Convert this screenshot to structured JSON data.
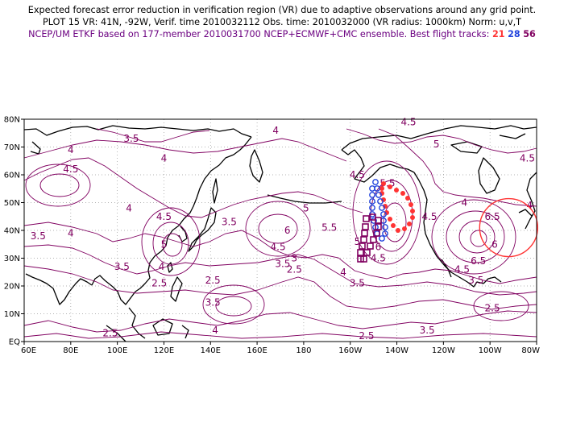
{
  "header": {
    "line1": "Expected forecast error reduction in verification region (VR) due to adaptive observations around any grid point.",
    "line2": "PLOT 15 VR: 41N, -92W, Verif. time 2010032112 Obs. time: 2010032000 (VR radius: 1000km) Norm: u,v,T",
    "line3": "NCEP/UM ETKF based on 177-member 2010031700 NCEP+ECMWF+CMC ensemble. Best flight tracks:",
    "track_a": "21",
    "track_b": "28",
    "track_c": "56"
  },
  "colors": {
    "track_a": "#ff3333",
    "track_b": "#2244dd",
    "track_c": "#800060",
    "contour": "#800060",
    "coast": "#000000"
  },
  "map": {
    "lon_range": [
      60,
      280
    ],
    "lat_range": [
      0,
      80
    ],
    "lat_ticks": [
      {
        "lat": 80,
        "label": "80N"
      },
      {
        "lat": 70,
        "label": "70N"
      },
      {
        "lat": 60,
        "label": "60N"
      },
      {
        "lat": 50,
        "label": "50N"
      },
      {
        "lat": 40,
        "label": "40N"
      },
      {
        "lat": 30,
        "label": "30N"
      },
      {
        "lat": 20,
        "label": "20N"
      },
      {
        "lat": 10,
        "label": "10N"
      },
      {
        "lat": 0,
        "label": "EQ"
      }
    ],
    "lon_ticks": [
      {
        "lon": 60,
        "label": "60E"
      },
      {
        "lon": 80,
        "label": "80E"
      },
      {
        "lon": 100,
        "label": "100E"
      },
      {
        "lon": 120,
        "label": "120E"
      },
      {
        "lon": 140,
        "label": "140E"
      },
      {
        "lon": 160,
        "label": "160E"
      },
      {
        "lon": 180,
        "label": "180"
      },
      {
        "lon": 200,
        "label": "160W"
      },
      {
        "lon": 220,
        "label": "140W"
      },
      {
        "lon": 240,
        "label": "120W"
      },
      {
        "lon": 260,
        "label": "100W"
      },
      {
        "lon": 280,
        "label": "80W"
      }
    ],
    "verification_region": {
      "lon": 268,
      "lat": 41
    },
    "contour_labels": [
      {
        "lon": 168,
        "lat": 76,
        "text": "4"
      },
      {
        "lon": 106,
        "lat": 73,
        "text": "3.5"
      },
      {
        "lon": 80,
        "lat": 69,
        "text": "4"
      },
      {
        "lon": 80,
        "lat": 62,
        "text": "4.5"
      },
      {
        "lon": 120,
        "lat": 66,
        "text": "4"
      },
      {
        "lon": 105,
        "lat": 48,
        "text": "4"
      },
      {
        "lon": 120,
        "lat": 45,
        "text": "4.5"
      },
      {
        "lon": 148,
        "lat": 43,
        "text": "3.5"
      },
      {
        "lon": 66,
        "lat": 38,
        "text": "3.5"
      },
      {
        "lon": 80,
        "lat": 39,
        "text": "4"
      },
      {
        "lon": 120,
        "lat": 35,
        "text": "5"
      },
      {
        "lon": 119,
        "lat": 27,
        "text": "4"
      },
      {
        "lon": 102,
        "lat": 27,
        "text": "3.5"
      },
      {
        "lon": 118,
        "lat": 21,
        "text": "2.5"
      },
      {
        "lon": 173,
        "lat": 40,
        "text": "6"
      },
      {
        "lon": 169,
        "lat": 34,
        "text": "4.5"
      },
      {
        "lon": 181,
        "lat": 48,
        "text": "5"
      },
      {
        "lon": 191,
        "lat": 41,
        "text": "5.5"
      },
      {
        "lon": 171,
        "lat": 28,
        "text": "3.5"
      },
      {
        "lon": 176,
        "lat": 30,
        "text": "3"
      },
      {
        "lon": 176,
        "lat": 26,
        "text": "2.5"
      },
      {
        "lon": 203,
        "lat": 60,
        "text": "4.5"
      },
      {
        "lon": 216,
        "lat": 57,
        "text": "5.5"
      },
      {
        "lon": 203,
        "lat": 36,
        "text": "5"
      },
      {
        "lon": 212,
        "lat": 34,
        "text": "6"
      },
      {
        "lon": 212,
        "lat": 30,
        "text": "4.5"
      },
      {
        "lon": 197,
        "lat": 25,
        "text": "4"
      },
      {
        "lon": 203,
        "lat": 21,
        "text": "3.5"
      },
      {
        "lon": 234,
        "lat": 45,
        "text": "4.5"
      },
      {
        "lon": 225,
        "lat": 79,
        "text": "4.5"
      },
      {
        "lon": 237,
        "lat": 71,
        "text": "5"
      },
      {
        "lon": 249,
        "lat": 50,
        "text": "4"
      },
      {
        "lon": 261,
        "lat": 45,
        "text": "6.5"
      },
      {
        "lon": 262,
        "lat": 35,
        "text": "6"
      },
      {
        "lon": 255,
        "lat": 29,
        "text": "6.5"
      },
      {
        "lon": 248,
        "lat": 26,
        "text": "4.5"
      },
      {
        "lon": 254,
        "lat": 22,
        "text": "3.5"
      },
      {
        "lon": 261,
        "lat": 12,
        "text": "2.5"
      },
      {
        "lon": 276,
        "lat": 66,
        "text": "4.5"
      },
      {
        "lon": 277,
        "lat": 49,
        "text": "4"
      },
      {
        "lon": 141,
        "lat": 22,
        "text": "2.5"
      },
      {
        "lon": 141,
        "lat": 14,
        "text": "3.5"
      },
      {
        "lon": 142,
        "lat": 4,
        "text": "4"
      },
      {
        "lon": 97,
        "lat": 3,
        "text": "2.5"
      },
      {
        "lon": 207,
        "lat": 2,
        "text": "2.5"
      },
      {
        "lon": 233,
        "lat": 4,
        "text": "3.5"
      }
    ]
  }
}
